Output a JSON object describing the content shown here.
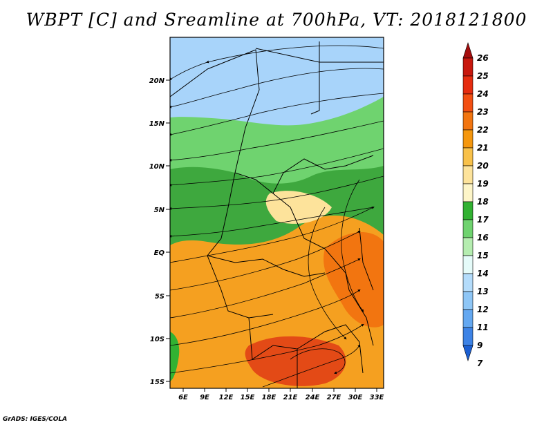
{
  "title": "WBPT [C] and Sreamline at 700hPa, VT: 2018121800",
  "credit": "GrADS: IGES/COLA",
  "lat_labels": [
    "20N",
    "15N",
    "10N",
    "5N",
    "EQ",
    "5S",
    "10S",
    "15S"
  ],
  "lon_labels": [
    "6E",
    "9E",
    "12E",
    "15E",
    "18E",
    "21E",
    "24E",
    "27E",
    "30E",
    "33E"
  ],
  "colorbar": {
    "labels": [
      "26",
      "25",
      "24",
      "23",
      "22",
      "21",
      "20",
      "19",
      "18",
      "17",
      "16",
      "15",
      "14",
      "13",
      "12",
      "11",
      "9",
      "7"
    ],
    "colors": [
      "#a50d0d",
      "#c8180e",
      "#e62c10",
      "#f34f12",
      "#f27510",
      "#f5970e",
      "#f8c14a",
      "#fde39b",
      "#fdf5c8",
      "#32b232",
      "#6fd36f",
      "#b5edb0",
      "#e5fbf9",
      "#b4dcfb",
      "#8ec6f6",
      "#64a8f1",
      "#3d83e6",
      "#1b5fd2"
    ]
  },
  "map_regions": [
    {
      "name": "north-cool-zone",
      "color": "#a8d4fa"
    },
    {
      "name": "sahel-green-band",
      "color": "#6fd36f"
    },
    {
      "name": "equatorial-green",
      "color": "#3ea83e"
    },
    {
      "name": "southern-warm-zone",
      "color": "#f5a020"
    },
    {
      "name": "southern-hot-core",
      "color": "#e34a16"
    }
  ]
}
